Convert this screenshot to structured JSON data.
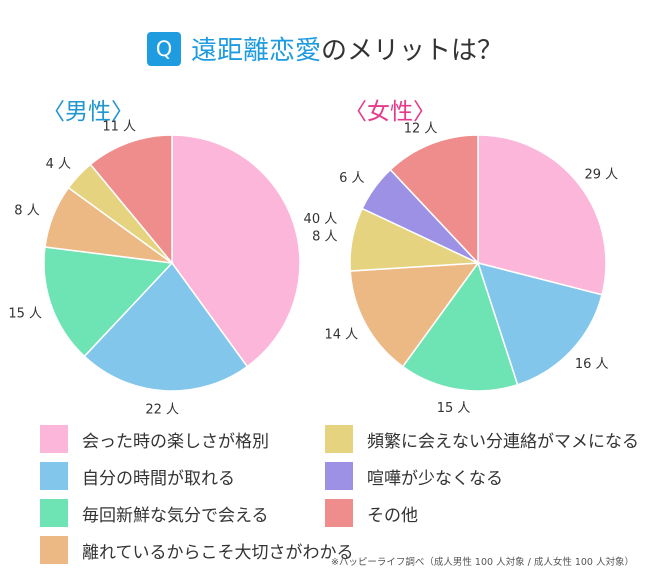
{
  "header": {
    "badge": "Q",
    "title_highlight": "遠距離恋愛",
    "title_rest": "のメリットは？"
  },
  "panels": {
    "male": {
      "label": "〈男性〉"
    },
    "female": {
      "label": "〈女性〉"
    }
  },
  "legend": [
    {
      "label": "会った時の楽しさが格別",
      "color": "#fcb6d9"
    },
    {
      "label": "自分の時間が取れる",
      "color": "#83c6eb"
    },
    {
      "label": "毎回新鮮な気分で会える",
      "color": "#6ee3b3"
    },
    {
      "label": "離れているからこそ大切さがわかる",
      "color": "#ecb985"
    },
    {
      "label": "頻繁に会えない分連絡がマメになる",
      "color": "#e5d37f"
    },
    {
      "label": "喧嘩が少なくなる",
      "color": "#9d91e6"
    },
    {
      "label": "その他",
      "color": "#ef8c8c"
    }
  ],
  "footnote": "※ハッピーライフ調べ（成人男性 100 人対象 / 成人女性 100 人対象）",
  "chart_data": [
    {
      "type": "pie",
      "title": "〈男性〉",
      "unit": "人",
      "categories": [
        "会った時の楽しさが格別",
        "自分の時間が取れる",
        "毎回新鮮な気分で会える",
        "離れているからこそ大切さがわかる",
        "頻繁に会えない分連絡がマメになる",
        "喧嘩が少なくなる",
        "その他"
      ],
      "values": [
        40,
        22,
        15,
        8,
        4,
        0,
        11
      ],
      "data_labels": [
        "40 人",
        "22 人",
        "15 人",
        "8 人",
        "4 人",
        "",
        "11 人"
      ]
    },
    {
      "type": "pie",
      "title": "〈女性〉",
      "unit": "人",
      "categories": [
        "会った時の楽しさが格別",
        "自分の時間が取れる",
        "毎回新鮮な気分で会える",
        "離れているからこそ大切さがわかる",
        "頻繁に会えない分連絡がマメになる",
        "喧嘩が少なくなる",
        "その他"
      ],
      "values": [
        29,
        16,
        15,
        14,
        8,
        6,
        12
      ],
      "data_labels": [
        "29 人",
        "16 人",
        "15 人",
        "14 人",
        "8 人",
        "6 人",
        "12 人"
      ]
    }
  ]
}
